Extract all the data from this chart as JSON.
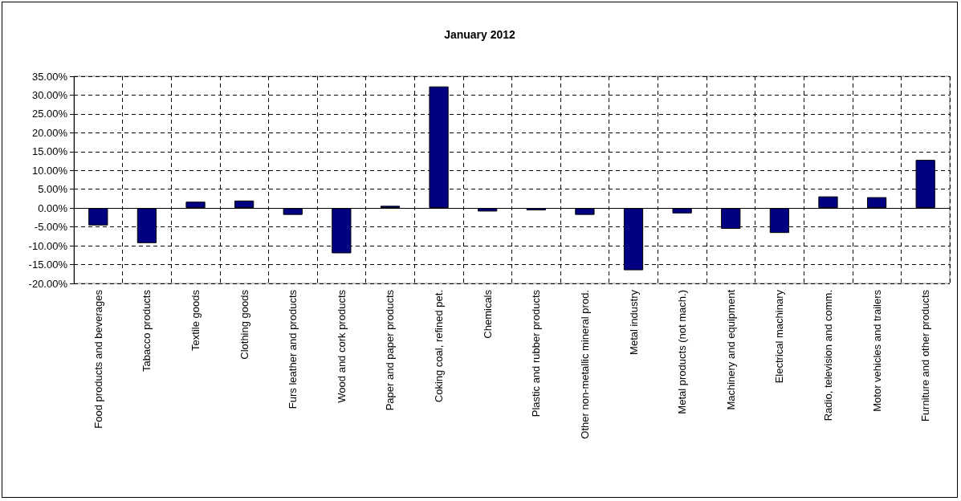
{
  "chart_data": {
    "type": "bar",
    "title": "January 2012",
    "categories": [
      "Food products and beverages",
      "Tabacco products",
      "Textile goods",
      "Clothing goods",
      "Furs leather and products",
      "Wood and cork products",
      "Paper and paper products",
      "Coking coal, refined pet.",
      "Chemicals",
      "Plastic and rubber products",
      "Other non-metallic mineral prod.",
      "Metal industry",
      "Metal products (not mach.)",
      "Machinery and equipment",
      "Electrical machinary",
      "Radio, television and comm.",
      "Motor vehicles and trailers",
      "Furniture and other products"
    ],
    "values": [
      -4.6,
      -9.3,
      1.7,
      2.0,
      -1.8,
      -12.0,
      0.6,
      32.3,
      -0.9,
      -0.6,
      -1.8,
      -16.5,
      -1.4,
      -5.5,
      -6.6,
      3.1,
      2.9,
      12.8
    ],
    "color": "#000080",
    "ylim": [
      -20,
      35
    ],
    "yticks": [
      {
        "value": -20,
        "label": "-20.00%"
      },
      {
        "value": -15,
        "label": "-15.00%"
      },
      {
        "value": -10,
        "label": "-10.00%"
      },
      {
        "value": -5,
        "label": "-5.00%"
      },
      {
        "value": 0,
        "label": "0.00%"
      },
      {
        "value": 5,
        "label": "5.00%"
      },
      {
        "value": 10,
        "label": "10.00%"
      },
      {
        "value": 15,
        "label": "15.00%"
      },
      {
        "value": 20,
        "label": "20.00%"
      },
      {
        "value": 25,
        "label": "25.00%"
      },
      {
        "value": 30,
        "label": "30.00%"
      },
      {
        "value": 35,
        "label": "35.00%"
      }
    ],
    "grid": true
  }
}
